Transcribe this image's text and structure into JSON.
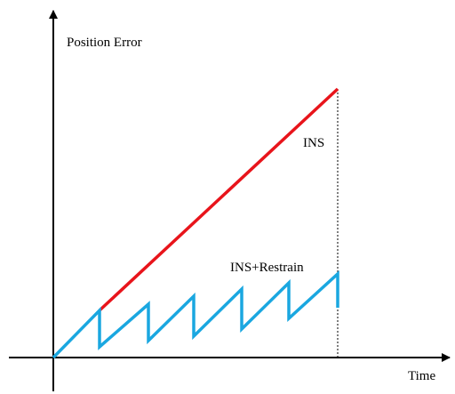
{
  "y_axis_label": "Position Error",
  "x_axis_label": "Time",
  "labels": {
    "ins": "INS",
    "ins_restrain": "INS+Restrain"
  }
}
